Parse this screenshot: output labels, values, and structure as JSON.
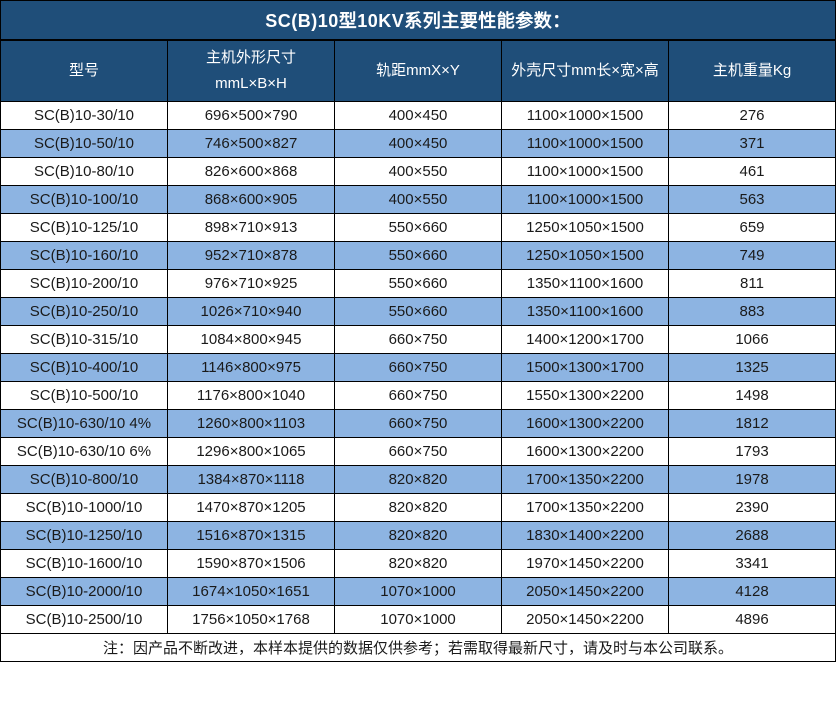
{
  "title": "SC(B)10型10KV系列主要性能参数：",
  "colors": {
    "header_bg": "#1F4E79",
    "row_alt_bg": "#8DB4E2",
    "row_bg": "#FFFFFF",
    "border": "#000000",
    "header_text": "#FFFFFF"
  },
  "table": {
    "headers": [
      "型号",
      "主机外形尺寸\nmmL×B×H",
      "轨距mmX×Y",
      "外壳尺寸mm长×宽×高",
      "主机重量Kg"
    ],
    "rows": [
      [
        "SC(B)10-30/10",
        "696×500×790",
        "400×450",
        "1100×1000×1500",
        "276"
      ],
      [
        "SC(B)10-50/10",
        "746×500×827",
        "400×450",
        "1100×1000×1500",
        "371"
      ],
      [
        "SC(B)10-80/10",
        "826×600×868",
        "400×550",
        "1100×1000×1500",
        "461"
      ],
      [
        "SC(B)10-100/10",
        "868×600×905",
        "400×550",
        "1100×1000×1500",
        "563"
      ],
      [
        "SC(B)10-125/10",
        "898×710×913",
        "550×660",
        "1250×1050×1500",
        "659"
      ],
      [
        "SC(B)10-160/10",
        "952×710×878",
        "550×660",
        "1250×1050×1500",
        "749"
      ],
      [
        "SC(B)10-200/10",
        "976×710×925",
        "550×660",
        "1350×1100×1600",
        "811"
      ],
      [
        "SC(B)10-250/10",
        "1026×710×940",
        "550×660",
        "1350×1100×1600",
        "883"
      ],
      [
        "SC(B)10-315/10",
        "1084×800×945",
        "660×750",
        "1400×1200×1700",
        "1066"
      ],
      [
        "SC(B)10-400/10",
        "1146×800×975",
        "660×750",
        "1500×1300×1700",
        "1325"
      ],
      [
        "SC(B)10-500/10",
        "1176×800×1040",
        "660×750",
        "1550×1300×2200",
        "1498"
      ],
      [
        "SC(B)10-630/10 4%",
        "1260×800×1103",
        "660×750",
        "1600×1300×2200",
        "1812"
      ],
      [
        "SC(B)10-630/10 6%",
        "1296×800×1065",
        "660×750",
        "1600×1300×2200",
        "1793"
      ],
      [
        "SC(B)10-800/10",
        "1384×870×1118",
        "820×820",
        "1700×1350×2200",
        "1978"
      ],
      [
        "SC(B)10-1000/10",
        "1470×870×1205",
        "820×820",
        "1700×1350×2200",
        "2390"
      ],
      [
        "SC(B)10-1250/10",
        "1516×870×1315",
        "820×820",
        "1830×1400×2200",
        "2688"
      ],
      [
        "SC(B)10-1600/10",
        "1590×870×1506",
        "820×820",
        "1970×1450×2200",
        "3341"
      ],
      [
        "SC(B)10-2000/10",
        "1674×1050×1651",
        "1070×1000",
        "2050×1450×2200",
        "4128"
      ],
      [
        "SC(B)10-2500/10",
        "1756×1050×1768",
        "1070×1000",
        "2050×1450×2200",
        "4896"
      ]
    ],
    "note": "注：因产品不断改进，本样本提供的数据仅供参考；若需取得最新尺寸，请及时与本公司联系。"
  }
}
